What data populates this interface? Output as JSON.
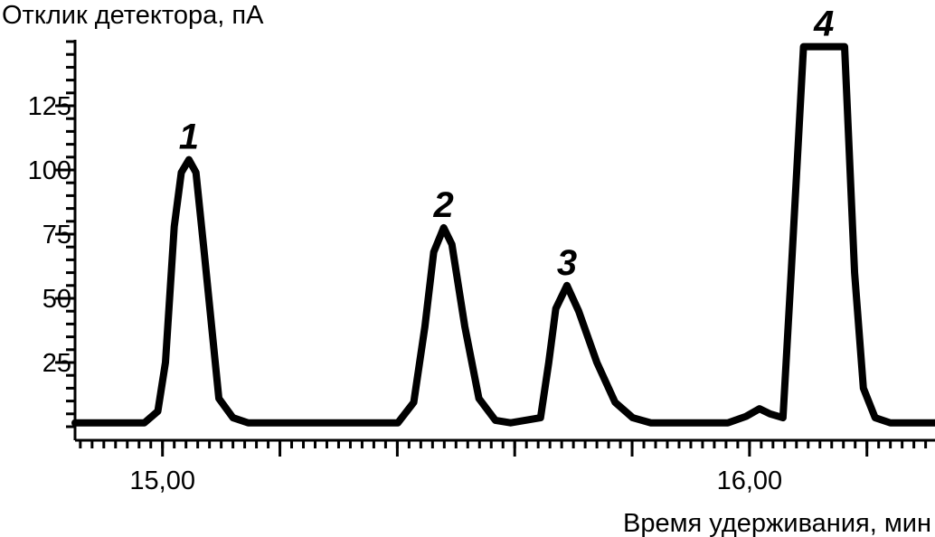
{
  "chart_data": {
    "type": "line",
    "ylabel": "Отклик детектора, пА",
    "xlabel": "Время удерживания, мин",
    "x": [
      14.851,
      14.969,
      14.992,
      15.005,
      15.02,
      15.032,
      15.045,
      15.057,
      15.071,
      15.096,
      15.12,
      15.146,
      15.401,
      15.428,
      15.447,
      15.462,
      15.479,
      15.493,
      15.515,
      15.539,
      15.567,
      15.593,
      15.644,
      15.658,
      15.67,
      15.689,
      15.709,
      15.74,
      15.771,
      15.801,
      15.832,
      15.963,
      15.994,
      16.017,
      16.035,
      16.057,
      16.071,
      16.092,
      16.162,
      16.179,
      16.194,
      16.214,
      16.24,
      16.316
    ],
    "series": [
      {
        "color": "#000000",
        "values": [
          1.5,
          1.5,
          6,
          25,
          78,
          99,
          104,
          99,
          68,
          11,
          3.5,
          1.5,
          1.5,
          9.5,
          39,
          68,
          77.5,
          71,
          39,
          11,
          2.5,
          1.5,
          3.5,
          25,
          46,
          55,
          45,
          25,
          9.5,
          3.5,
          1.5,
          1.5,
          4,
          7,
          5,
          3.5,
          60,
          148,
          148,
          60,
          15,
          3.5,
          1.5,
          1.5
        ]
      }
    ],
    "annotations": [
      {
        "text": "1",
        "x": 15.045,
        "y": 104
      },
      {
        "text": "2",
        "x": 15.479,
        "y": 77.5
      },
      {
        "text": "3",
        "x": 15.689,
        "y": 55
      },
      {
        "text": "4",
        "x": 16.127,
        "y": 148
      }
    ],
    "xlim": [
      14.851,
      16.316
    ],
    "ylim": [
      0,
      150
    ],
    "xticks": [
      {
        "value": 15,
        "label": "15,00"
      },
      {
        "value": 16,
        "label": "16,00"
      }
    ],
    "xticks_unlabeled": [
      15.2,
      15.4,
      15.6,
      15.8,
      16.2
    ],
    "yticks": [
      25,
      50,
      75,
      100,
      125
    ]
  }
}
